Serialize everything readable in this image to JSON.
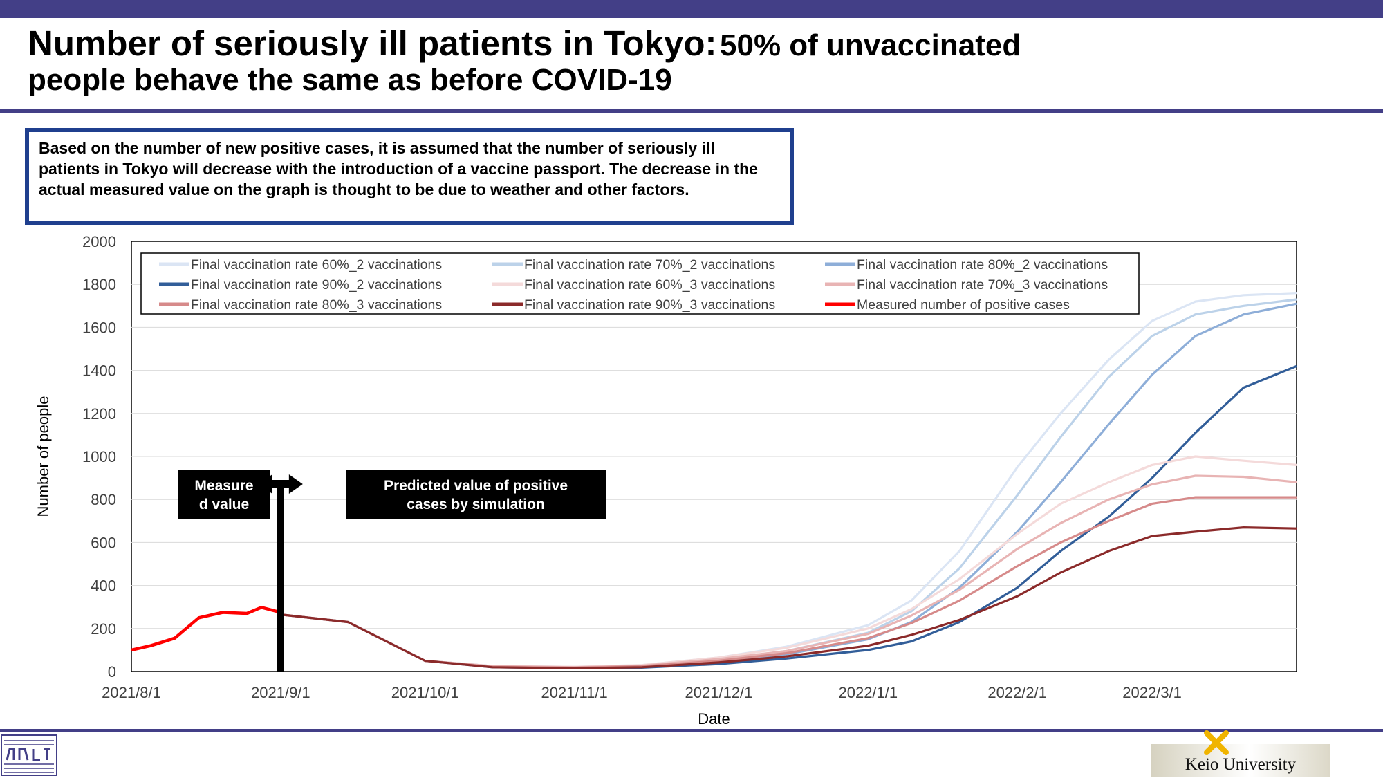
{
  "header": {
    "title_main": "Number of seriously ill patients in Tokyo:",
    "title_sub_1": "50% of unvaccinated",
    "title_sub_2": "people behave the same as before COVID-19"
  },
  "note": {
    "text": "Based on the number of new positive cases, it is assumed that the number of seriously ill patients in Tokyo will decrease with the introduction of a vaccine passport. The decrease in the actual measured value on the graph is thought to be due to weather and other factors."
  },
  "footer": {
    "university": "Keio University"
  },
  "colors": {
    "banner": "#433f87",
    "note_border": "#1f3f8e",
    "measured": "#ff0000"
  },
  "chart_data": {
    "type": "line",
    "xlabel": "Date",
    "ylabel": "Number of people",
    "ylim": [
      0,
      2000
    ],
    "yticks": [
      0,
      200,
      400,
      600,
      800,
      1000,
      1200,
      1400,
      1600,
      1800,
      2000
    ],
    "x_start": "2021-08-01",
    "x_end": "2022-03-31",
    "xticks": [
      "2021/8/1",
      "2021/9/1",
      "2021/10/1",
      "2021/11/1",
      "2021/12/1",
      "2022/1/1",
      "2022/2/1",
      "2022/3/1"
    ],
    "grid": "horizontal",
    "legend_position": "top",
    "prediction_start": "2021-09-01",
    "annotations": {
      "measured_label": "Measure d value",
      "predicted_label": "Predicted value of positive cases by simulation"
    },
    "series": [
      {
        "name": "Final vaccination rate 60%_2 vaccinations",
        "color": "#dbe5f4",
        "dates": [
          "2021-09-01",
          "2021-09-15",
          "2021-10-01",
          "2021-10-15",
          "2021-11-01",
          "2021-11-15",
          "2021-12-01",
          "2021-12-15",
          "2022-01-01",
          "2022-01-10",
          "2022-01-20",
          "2022-02-01",
          "2022-02-10",
          "2022-02-20",
          "2022-03-01",
          "2022-03-10",
          "2022-03-20",
          "2022-03-31"
        ],
        "values": [
          265,
          230,
          50,
          25,
          22,
          30,
          65,
          115,
          215,
          330,
          560,
          950,
          1200,
          1450,
          1630,
          1720,
          1750,
          1760
        ]
      },
      {
        "name": "Final vaccination rate 70%_2 vaccinations",
        "color": "#bcd2e9",
        "dates": [
          "2021-09-01",
          "2021-09-15",
          "2021-10-01",
          "2021-10-15",
          "2021-11-01",
          "2021-11-15",
          "2021-12-01",
          "2021-12-15",
          "2022-01-01",
          "2022-01-10",
          "2022-01-20",
          "2022-02-01",
          "2022-02-10",
          "2022-02-20",
          "2022-03-01",
          "2022-03-10",
          "2022-03-20",
          "2022-03-31"
        ],
        "values": [
          265,
          230,
          50,
          25,
          20,
          26,
          55,
          95,
          180,
          280,
          480,
          820,
          1090,
          1370,
          1560,
          1660,
          1700,
          1730
        ]
      },
      {
        "name": "Final vaccination rate 80%_2 vaccinations",
        "color": "#8eaed8",
        "dates": [
          "2021-09-01",
          "2021-09-15",
          "2021-10-01",
          "2021-10-15",
          "2021-11-01",
          "2021-11-15",
          "2021-12-01",
          "2021-12-15",
          "2022-01-01",
          "2022-01-10",
          "2022-01-20",
          "2022-02-01",
          "2022-02-10",
          "2022-02-20",
          "2022-03-01",
          "2022-03-10",
          "2022-03-20",
          "2022-03-31"
        ],
        "values": [
          265,
          230,
          50,
          25,
          18,
          22,
          45,
          80,
          150,
          230,
          390,
          650,
          880,
          1150,
          1380,
          1560,
          1660,
          1710
        ]
      },
      {
        "name": "Final vaccination rate 90%_2 vaccinations",
        "color": "#325e99",
        "dates": [
          "2021-09-01",
          "2021-09-15",
          "2021-10-01",
          "2021-10-15",
          "2021-11-01",
          "2021-11-15",
          "2021-12-01",
          "2021-12-15",
          "2022-01-01",
          "2022-01-10",
          "2022-01-20",
          "2022-02-01",
          "2022-02-10",
          "2022-02-20",
          "2022-03-01",
          "2022-03-10",
          "2022-03-20",
          "2022-03-31"
        ],
        "values": [
          265,
          230,
          50,
          20,
          15,
          18,
          35,
          60,
          100,
          140,
          230,
          390,
          560,
          720,
          900,
          1110,
          1320,
          1420
        ]
      },
      {
        "name": "Final vaccination rate 60%_3 vaccinations",
        "color": "#f4dada",
        "dates": [
          "2021-09-01",
          "2021-09-15",
          "2021-10-01",
          "2021-10-15",
          "2021-11-01",
          "2021-11-15",
          "2021-12-01",
          "2021-12-15",
          "2022-01-01",
          "2022-01-10",
          "2022-01-20",
          "2022-02-01",
          "2022-02-10",
          "2022-02-20",
          "2022-03-01",
          "2022-03-10",
          "2022-03-20",
          "2022-03-31"
        ],
        "values": [
          265,
          230,
          50,
          25,
          22,
          30,
          65,
          110,
          200,
          290,
          430,
          640,
          780,
          880,
          960,
          1000,
          980,
          960
        ]
      },
      {
        "name": "Final vaccination rate 70%_3 vaccinations",
        "color": "#e8b4b4",
        "dates": [
          "2021-09-01",
          "2021-09-15",
          "2021-10-01",
          "2021-10-15",
          "2021-11-01",
          "2021-11-15",
          "2021-12-01",
          "2021-12-15",
          "2022-01-01",
          "2022-01-10",
          "2022-01-20",
          "2022-02-01",
          "2022-02-10",
          "2022-02-20",
          "2022-03-01",
          "2022-03-10",
          "2022-03-20",
          "2022-03-31"
        ],
        "values": [
          265,
          230,
          50,
          25,
          20,
          27,
          58,
          95,
          175,
          260,
          380,
          570,
          690,
          800,
          870,
          910,
          905,
          880
        ]
      },
      {
        "name": "Final vaccination rate 80%_3 vaccinations",
        "color": "#d68a8a",
        "dates": [
          "2021-09-01",
          "2021-09-15",
          "2021-10-01",
          "2021-10-15",
          "2021-11-01",
          "2021-11-15",
          "2021-12-01",
          "2021-12-15",
          "2022-01-01",
          "2022-01-10",
          "2022-01-20",
          "2022-02-01",
          "2022-02-10",
          "2022-02-20",
          "2022-03-01",
          "2022-03-10",
          "2022-03-20",
          "2022-03-31"
        ],
        "values": [
          265,
          230,
          50,
          22,
          18,
          24,
          50,
          85,
          155,
          225,
          330,
          490,
          600,
          700,
          780,
          810,
          810,
          810
        ]
      },
      {
        "name": "Final vaccination rate 90%_3 vaccinations",
        "color": "#8b2a2a",
        "dates": [
          "2021-09-01",
          "2021-09-15",
          "2021-10-01",
          "2021-10-15",
          "2021-11-01",
          "2021-11-15",
          "2021-12-01",
          "2021-12-15",
          "2022-01-01",
          "2022-01-10",
          "2022-01-20",
          "2022-02-01",
          "2022-02-10",
          "2022-02-20",
          "2022-03-01",
          "2022-03-10",
          "2022-03-20",
          "2022-03-31"
        ],
        "values": [
          265,
          230,
          50,
          20,
          15,
          20,
          42,
          70,
          120,
          170,
          240,
          350,
          460,
          560,
          630,
          650,
          670,
          665
        ]
      },
      {
        "name": "Measured number of positive cases",
        "color": "#ff0000",
        "dates": [
          "2021-08-01",
          "2021-08-05",
          "2021-08-10",
          "2021-08-15",
          "2021-08-20",
          "2021-08-25",
          "2021-08-28",
          "2021-09-01"
        ],
        "values": [
          100,
          120,
          155,
          250,
          275,
          270,
          298,
          275
        ]
      }
    ]
  }
}
